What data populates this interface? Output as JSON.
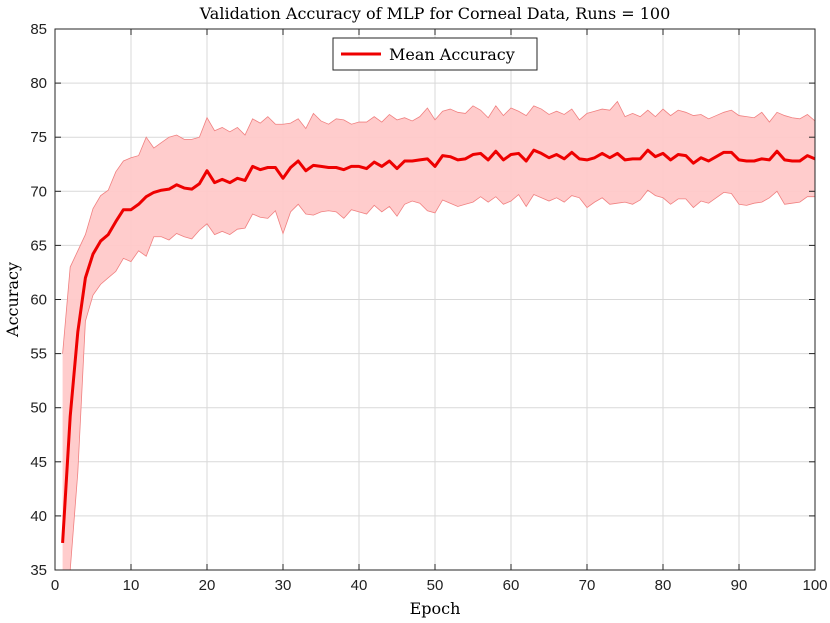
{
  "chart_data": {
    "type": "line",
    "title": "Validation Accuracy of MLP for Corneal Data, Runs = 100",
    "xlabel": "Epoch",
    "ylabel": "Accuracy",
    "xlim": [
      0,
      100
    ],
    "ylim": [
      35,
      85
    ],
    "xticks": [
      0,
      10,
      20,
      30,
      40,
      50,
      60,
      70,
      80,
      90,
      100
    ],
    "yticks": [
      35,
      40,
      45,
      50,
      55,
      60,
      65,
      70,
      75,
      80,
      85
    ],
    "grid": true,
    "legend": {
      "placement": "top-center",
      "entries": [
        "Mean Accuracy"
      ]
    },
    "colors": {
      "mean_line": "#ee0000",
      "band_fill": "#ffc9c9",
      "band_edge": "#f08080",
      "axis": "#262626"
    },
    "x": [
      1,
      2,
      3,
      4,
      5,
      6,
      7,
      8,
      9,
      10,
      11,
      12,
      13,
      14,
      15,
      16,
      17,
      18,
      19,
      20,
      21,
      22,
      23,
      24,
      25,
      26,
      27,
      28,
      29,
      30,
      31,
      32,
      33,
      34,
      35,
      36,
      37,
      38,
      39,
      40,
      41,
      42,
      43,
      44,
      45,
      46,
      47,
      48,
      49,
      50,
      51,
      52,
      53,
      54,
      55,
      56,
      57,
      58,
      59,
      60,
      61,
      62,
      63,
      64,
      65,
      66,
      67,
      68,
      69,
      70,
      71,
      72,
      73,
      74,
      75,
      76,
      77,
      78,
      79,
      80,
      81,
      82,
      83,
      84,
      85,
      86,
      87,
      88,
      89,
      90,
      91,
      92,
      93,
      94,
      95,
      96,
      97,
      98,
      99,
      100
    ],
    "series": [
      {
        "name": "Mean Accuracy",
        "values": [
          37.5,
          49.2,
          57.0,
          62.0,
          64.2,
          65.4,
          66.0,
          67.2,
          68.3,
          68.3,
          68.8,
          69.5,
          69.9,
          70.1,
          70.2,
          70.6,
          70.3,
          70.2,
          70.7,
          71.9,
          70.8,
          71.1,
          70.8,
          71.2,
          71.0,
          72.3,
          72.0,
          72.2,
          72.2,
          71.2,
          72.2,
          72.8,
          71.9,
          72.4,
          72.3,
          72.2,
          72.2,
          72.0,
          72.3,
          72.3,
          72.1,
          72.7,
          72.3,
          72.8,
          72.1,
          72.8,
          72.8,
          72.9,
          73.0,
          72.3,
          73.3,
          73.2,
          72.9,
          73.0,
          73.4,
          73.5,
          72.9,
          73.7,
          72.9,
          73.4,
          73.5,
          72.8,
          73.8,
          73.5,
          73.1,
          73.4,
          73.0,
          73.6,
          73.0,
          72.9,
          73.1,
          73.5,
          73.1,
          73.5,
          72.9,
          73.0,
          73.0,
          73.8,
          73.2,
          73.5,
          72.9,
          73.4,
          73.3,
          72.6,
          73.1,
          72.8,
          73.2,
          73.6,
          73.6,
          72.9,
          72.8,
          72.8,
          73.0,
          72.9,
          73.7,
          72.9,
          72.8,
          72.8,
          73.3,
          73.0
        ]
      },
      {
        "name": "",
        "role": "upper bound of shaded band",
        "values": [
          55.0,
          63.0,
          64.5,
          66.0,
          68.4,
          69.6,
          70.1,
          71.8,
          72.8,
          73.1,
          73.3,
          75.0,
          74.0,
          74.5,
          75.0,
          75.2,
          74.8,
          74.8,
          75.0,
          76.8,
          75.6,
          75.9,
          75.5,
          75.9,
          75.2,
          76.7,
          76.3,
          76.9,
          76.2,
          76.2,
          76.3,
          76.7,
          75.8,
          77.2,
          76.5,
          76.2,
          76.7,
          76.6,
          76.2,
          76.4,
          76.4,
          76.9,
          76.4,
          77.1,
          76.6,
          76.8,
          76.5,
          76.9,
          77.7,
          76.6,
          77.4,
          77.6,
          77.3,
          77.2,
          77.9,
          77.5,
          76.8,
          77.9,
          77.0,
          77.7,
          77.4,
          77.0,
          77.9,
          77.6,
          77.1,
          77.4,
          77.1,
          77.6,
          76.6,
          77.2,
          77.4,
          77.6,
          77.5,
          78.3,
          76.9,
          77.2,
          76.9,
          77.5,
          76.9,
          77.6,
          77.0,
          77.5,
          77.3,
          77.0,
          77.1,
          76.7,
          77.0,
          77.3,
          77.5,
          77.0,
          76.9,
          76.8,
          77.3,
          76.4,
          77.3,
          77.0,
          76.8,
          76.7,
          77.1,
          76.5
        ]
      },
      {
        "name": "",
        "role": "lower bound of shaded band",
        "values": [
          34.5,
          34.5,
          44.0,
          58.0,
          60.4,
          61.4,
          62.0,
          62.6,
          63.8,
          63.5,
          64.5,
          64.0,
          65.8,
          65.8,
          65.5,
          66.1,
          65.8,
          65.6,
          66.4,
          67.0,
          66.0,
          66.3,
          66.0,
          66.5,
          66.6,
          67.9,
          67.6,
          67.5,
          68.2,
          66.1,
          68.1,
          68.8,
          67.9,
          67.8,
          68.1,
          68.2,
          68.1,
          67.5,
          68.3,
          68.1,
          67.9,
          68.7,
          68.1,
          68.6,
          67.7,
          68.8,
          69.1,
          68.9,
          68.2,
          68.0,
          69.2,
          68.9,
          68.6,
          68.8,
          69.0,
          69.5,
          69.0,
          69.5,
          68.8,
          69.1,
          69.7,
          68.6,
          69.7,
          69.4,
          69.1,
          69.4,
          69.0,
          69.6,
          69.4,
          68.5,
          69.0,
          69.4,
          68.8,
          68.9,
          69.0,
          68.8,
          69.2,
          70.1,
          69.6,
          69.4,
          68.8,
          69.3,
          69.3,
          68.5,
          69.1,
          68.9,
          69.4,
          69.9,
          69.8,
          68.8,
          68.7,
          68.9,
          69.0,
          69.4,
          70.0,
          68.8,
          68.9,
          69.0,
          69.5,
          69.5
        ]
      }
    ]
  }
}
